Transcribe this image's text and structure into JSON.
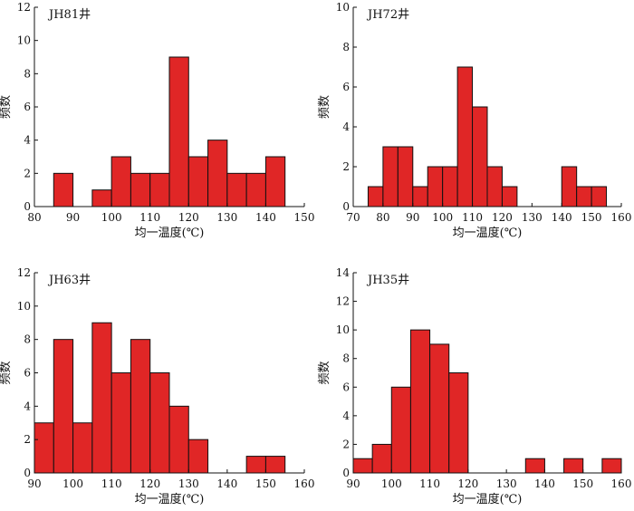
{
  "chart_data": [
    {
      "type": "bar",
      "title": "JH81井",
      "xlabel": "均一温度(℃)",
      "ylabel": "频数",
      "xlim": [
        80,
        150
      ],
      "ylim": [
        0,
        12
      ],
      "xticks": [
        80,
        90,
        100,
        110,
        120,
        130,
        140,
        150
      ],
      "yticks": [
        0,
        2,
        4,
        6,
        8,
        10,
        12
      ],
      "bin_width": 5,
      "x": [
        87.5,
        97.5,
        102.5,
        107.5,
        112.5,
        117.5,
        122.5,
        127.5,
        132.5,
        137.5,
        142.5
      ],
      "values": [
        2,
        1,
        3,
        2,
        2,
        9,
        3,
        4,
        2,
        2,
        3
      ]
    },
    {
      "type": "bar",
      "title": "JH72井",
      "xlabel": "均一温度(℃)",
      "ylabel": "频数",
      "xlim": [
        70,
        160
      ],
      "ylim": [
        0,
        10
      ],
      "xticks": [
        70,
        80,
        90,
        100,
        110,
        120,
        130,
        140,
        150,
        160
      ],
      "yticks": [
        0,
        2,
        4,
        6,
        8,
        10
      ],
      "bin_width": 5,
      "x": [
        77.5,
        82.5,
        87.5,
        92.5,
        97.5,
        102.5,
        107.5,
        112.5,
        117.5,
        122.5,
        142.5,
        147.5,
        152.5
      ],
      "values": [
        1,
        3,
        3,
        1,
        2,
        2,
        7,
        5,
        2,
        1,
        2,
        1,
        1
      ]
    },
    {
      "type": "bar",
      "title": "JH63井",
      "xlabel": "均一温度(℃)",
      "ylabel": "频数",
      "xlim": [
        90,
        160
      ],
      "ylim": [
        0,
        12
      ],
      "xticks": [
        90,
        100,
        110,
        120,
        130,
        140,
        150,
        160
      ],
      "yticks": [
        0,
        2,
        4,
        6,
        8,
        10,
        12
      ],
      "bin_width": 5,
      "x": [
        92.5,
        97.5,
        102.5,
        107.5,
        112.5,
        117.5,
        122.5,
        127.5,
        132.5,
        147.5,
        152.5
      ],
      "values": [
        3,
        8,
        3,
        9,
        6,
        8,
        6,
        4,
        2,
        1,
        1
      ]
    },
    {
      "type": "bar",
      "title": "JH35井",
      "xlabel": "均一温度(℃)",
      "ylabel": "频数",
      "xlim": [
        90,
        160
      ],
      "ylim": [
        0,
        14
      ],
      "xticks": [
        90,
        100,
        110,
        120,
        130,
        140,
        150,
        160
      ],
      "yticks": [
        0,
        2,
        4,
        6,
        8,
        10,
        12,
        14
      ],
      "bin_width": 5,
      "x": [
        92.5,
        97.5,
        102.5,
        107.5,
        112.5,
        117.5,
        137.5,
        147.5,
        157.5
      ],
      "values": [
        1,
        2,
        6,
        10,
        9,
        7,
        1,
        1,
        1
      ]
    }
  ],
  "colors": {
    "bar_fill": "#e02626",
    "bar_stroke": "#111111",
    "axis": "#111111"
  }
}
